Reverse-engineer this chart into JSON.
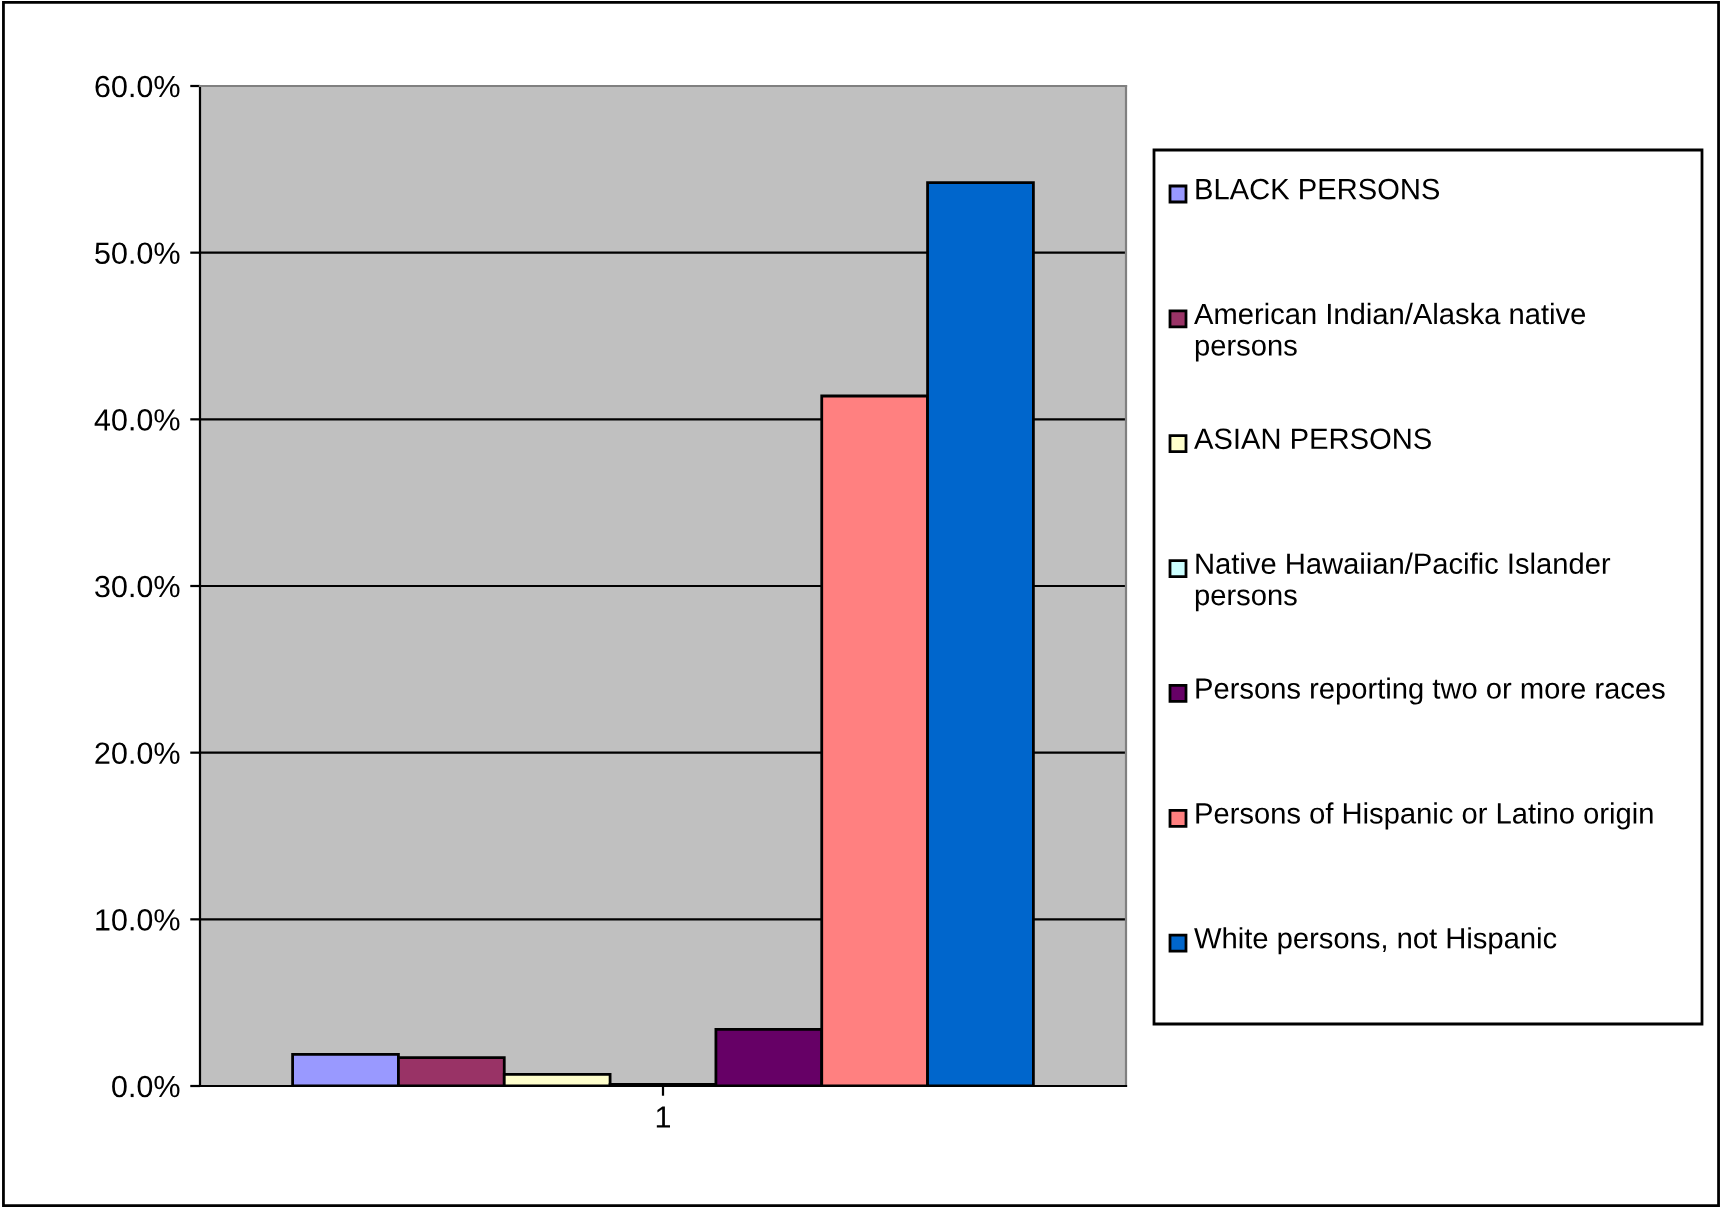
{
  "chart_data": {
    "type": "bar",
    "categories": [
      "1"
    ],
    "series": [
      {
        "name": "BLACK PERSONS",
        "color": "#9999ff",
        "values": [
          1.9
        ]
      },
      {
        "name": "American Indian/Alaska native persons",
        "color": "#993366",
        "values": [
          1.7
        ]
      },
      {
        "name": "ASIAN PERSONS",
        "color": "#ffffcc",
        "values": [
          0.7
        ]
      },
      {
        "name": "Native Hawaiian/Pacific Islander persons",
        "color": "#ccffff",
        "values": [
          0.1
        ]
      },
      {
        "name": "Persons reporting two or more races",
        "color": "#660066",
        "values": [
          3.4
        ]
      },
      {
        "name": "Persons of Hispanic or Latino origin",
        "color": "#ff8080",
        "values": [
          41.4
        ]
      },
      {
        "name": "White persons, not Hispanic",
        "color": "#0066cc",
        "values": [
          54.2
        ]
      }
    ],
    "ylim": [
      0,
      60
    ],
    "yticks": [
      {
        "value": 0,
        "label": "0.0%"
      },
      {
        "value": 10,
        "label": "10.0%"
      },
      {
        "value": 20,
        "label": "20.0%"
      },
      {
        "value": 30,
        "label": "30.0%"
      },
      {
        "value": 40,
        "label": "40.0%"
      },
      {
        "value": 50,
        "label": "50.0%"
      },
      {
        "value": 60,
        "label": "60.0%"
      }
    ],
    "grid": "y",
    "legend": "right"
  }
}
